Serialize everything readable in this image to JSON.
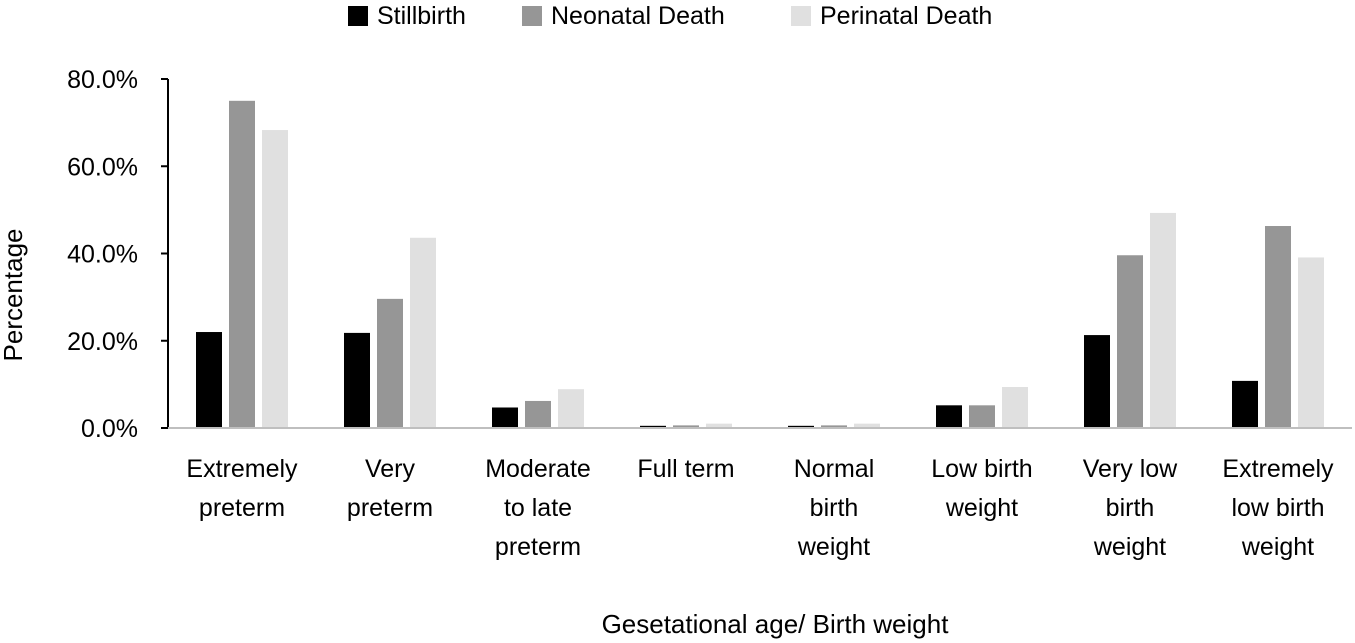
{
  "chart_data": {
    "type": "bar",
    "categories": [
      [
        "Extremely",
        "preterm"
      ],
      [
        "Very",
        "preterm"
      ],
      [
        "Moderate",
        "to late",
        "preterm"
      ],
      [
        "Full term"
      ],
      [
        "Normal",
        "birth",
        "weight"
      ],
      [
        "Low birth",
        "weight"
      ],
      [
        "Very low",
        "birth",
        "weight"
      ],
      [
        "Extremely",
        "low birth",
        "weight"
      ]
    ],
    "series": [
      {
        "name": "Stillbirth",
        "color": "#000000",
        "values": [
          22.0,
          21.8,
          4.7,
          0.5,
          0.5,
          5.2,
          21.3,
          10.8
        ]
      },
      {
        "name": "Neonatal Death",
        "color": "#969696",
        "values": [
          75.0,
          29.6,
          6.2,
          0.6,
          0.6,
          5.2,
          39.6,
          46.3
        ]
      },
      {
        "name": "Perinatal Death",
        "color": "#e0e0e0",
        "values": [
          68.3,
          43.6,
          8.9,
          1.0,
          1.0,
          9.4,
          49.3,
          39.1
        ]
      }
    ],
    "yticks": [
      "0.0%",
      "20.0%",
      "40.0%",
      "60.0%",
      "80.0%"
    ],
    "ylim": [
      0,
      80
    ],
    "xlabel": "Gesetational age/ Birth weight",
    "ylabel": "Percentage",
    "legend_position": "top-center",
    "grid": false
  }
}
